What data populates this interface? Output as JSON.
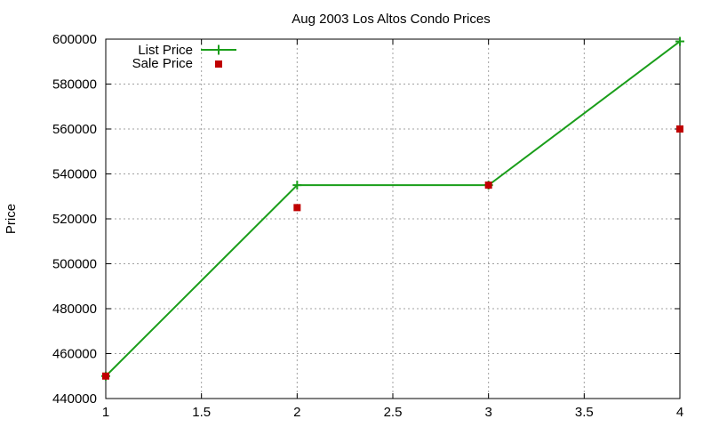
{
  "chart_data": {
    "type": "line",
    "title": "Aug 2003 Los Altos Condo Prices",
    "xlabel": "",
    "ylabel": "Price",
    "xlim": [
      1,
      4
    ],
    "ylim": [
      440000,
      600000
    ],
    "x_ticks": [
      1,
      1.5,
      2,
      2.5,
      3,
      3.5,
      4
    ],
    "x_tick_labels": [
      "1",
      "1.5",
      "2",
      "2.5",
      "3",
      "3.5",
      "4"
    ],
    "y_ticks": [
      440000,
      460000,
      480000,
      500000,
      520000,
      540000,
      560000,
      580000,
      600000
    ],
    "y_tick_labels": [
      "440000",
      "460000",
      "480000",
      "500000",
      "520000",
      "540000",
      "560000",
      "580000",
      "600000"
    ],
    "grid": true,
    "legend_position": "top-left",
    "series": [
      {
        "name": "List Price",
        "style": "linespoints",
        "marker": "plus",
        "color": "#1a9e1a",
        "x": [
          1,
          2,
          3,
          4
        ],
        "y": [
          450000,
          535000,
          535000,
          599000
        ]
      },
      {
        "name": "Sale Price",
        "style": "points",
        "marker": "square",
        "color": "#c00000",
        "x": [
          1,
          2,
          3,
          4
        ],
        "y": [
          450000,
          525000,
          535000,
          560000
        ]
      }
    ]
  }
}
